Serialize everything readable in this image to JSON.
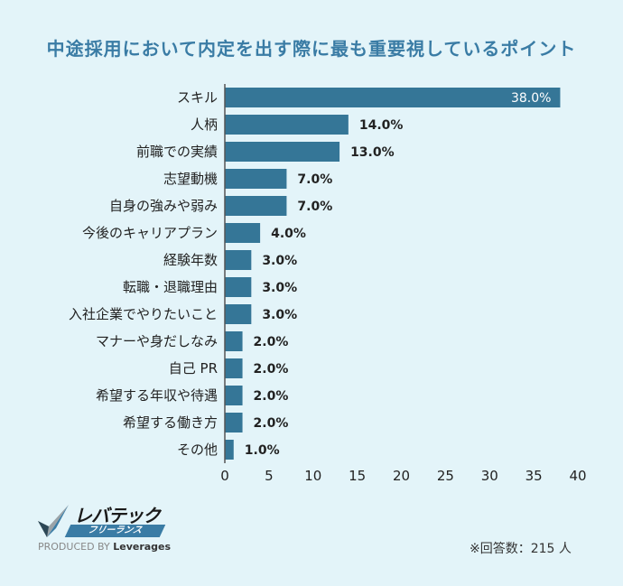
{
  "chart_data": {
    "type": "bar",
    "orientation": "horizontal",
    "title": "中途採用において内定を出す際に最も重要視しているポイント",
    "categories": [
      "スキル",
      "人柄",
      "前職での実績",
      "志望動機",
      "自身の強みや弱み",
      "今後のキャリアプラン",
      "経験年数",
      "転職・退職理由",
      "入社企業でやりたいこと",
      "マナーや身だしなみ",
      "自己 PR",
      "希望する年収や待遇",
      "希望する働き方",
      "その他"
    ],
    "values": [
      38.0,
      14.0,
      13.0,
      7.0,
      7.0,
      4.0,
      3.0,
      3.0,
      3.0,
      2.0,
      2.0,
      2.0,
      2.0,
      1.0
    ],
    "value_labels": [
      "38.0%",
      "14.0%",
      "13.0%",
      "7.0%",
      "7.0%",
      "4.0%",
      "3.0%",
      "3.0%",
      "3.0%",
      "2.0%",
      "2.0%",
      "2.0%",
      "2.0%",
      "1.0%"
    ],
    "xlim": [
      0,
      40
    ],
    "xticks": [
      "0",
      "5",
      "10",
      "15",
      "20",
      "25",
      "30",
      "35",
      "40"
    ],
    "grid": false,
    "bar_color": "#357697",
    "background": "#e3f4f9",
    "title_color": "#3a7ca5"
  },
  "logo": {
    "title": "レバテック",
    "subtitle": "フリーランス",
    "produced_by": "PRODUCED BY",
    "brand": "Leverages"
  },
  "note": "※回答数：215 人"
}
